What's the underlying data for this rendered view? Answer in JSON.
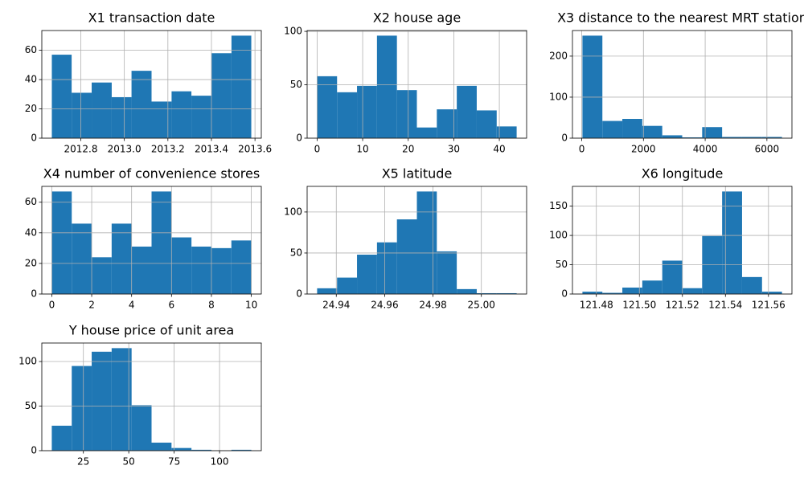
{
  "chart_data": [
    {
      "type": "histogram",
      "title": "X1 transaction date",
      "color": "#1f77b4",
      "grid": true,
      "bins": [
        2012.667,
        2012.758,
        2012.85,
        2012.942,
        2013.033,
        2013.125,
        2013.217,
        2013.308,
        2013.4,
        2013.492,
        2013.583
      ],
      "values": [
        57,
        31,
        38,
        28,
        46,
        25,
        32,
        29,
        58,
        70
      ],
      "xlim": [
        2012.621,
        2013.629
      ],
      "xticks": [
        2012.8,
        {
          "value": 2013,
          "label": "2013.0"
        },
        2013.2,
        2013.4,
        2013.6
      ],
      "ylim": [
        0,
        73.5
      ],
      "yticks": [
        0,
        20,
        40,
        60
      ]
    },
    {
      "type": "histogram",
      "title": "X2 house age",
      "color": "#1f77b4",
      "grid": true,
      "bins": [
        0,
        4.38,
        8.76,
        13.14,
        17.52,
        21.9,
        26.28,
        30.66,
        35.04,
        39.42,
        43.8
      ],
      "values": [
        58,
        43,
        49,
        96,
        45,
        10,
        27,
        49,
        26,
        11
      ],
      "xlim": [
        -2.19,
        45.99
      ],
      "xticks": [
        0,
        10,
        20,
        30,
        40
      ],
      "ylim": [
        0,
        100.8
      ],
      "yticks": [
        0,
        50,
        100
      ]
    },
    {
      "type": "histogram",
      "title": "X3 distance to the nearest MRT station",
      "color": "#1f77b4",
      "grid": true,
      "bins": [
        23.38,
        669.84,
        1316.31,
        1962.77,
        2609.24,
        3255.7,
        3902.16,
        4548.63,
        5195.09,
        5841.56,
        6488.02
      ],
      "values": [
        250,
        42,
        47,
        30,
        7,
        2,
        27,
        3,
        3,
        3
      ],
      "xlim": [
        -299.85,
        6811.25
      ],
      "xticks": [
        0,
        2000,
        4000,
        6000
      ],
      "ylim": [
        0,
        262.5
      ],
      "yticks": [
        0,
        100,
        200
      ]
    },
    {
      "type": "histogram",
      "title": "X4 number of convenience stores",
      "color": "#1f77b4",
      "grid": true,
      "bins": [
        0,
        1,
        2,
        3,
        4,
        5,
        6,
        7,
        8,
        9,
        10
      ],
      "values": [
        67,
        46,
        24,
        46,
        31,
        67,
        37,
        31,
        30,
        35
      ],
      "xlim": [
        -0.5,
        10.5
      ],
      "xticks": [
        0,
        2,
        4,
        6,
        8,
        10
      ],
      "ylim": [
        0,
        70.35
      ],
      "yticks": [
        0,
        20,
        40,
        60
      ]
    },
    {
      "type": "histogram",
      "title": "X5 latitude",
      "color": "#1f77b4",
      "grid": true,
      "bins": [
        24.93207,
        24.94032,
        24.94857,
        24.95683,
        24.96508,
        24.97333,
        24.98158,
        24.98983,
        24.99809,
        25.00634,
        25.01459
      ],
      "values": [
        7,
        20,
        48,
        63,
        91,
        125,
        52,
        6,
        1,
        1
      ],
      "xlim": [
        24.92794,
        25.01872
      ],
      "xticks": [
        24.94,
        24.96,
        24.98,
        {
          "value": 25,
          "label": "25.00"
        }
      ],
      "ylim": [
        0,
        131.25
      ],
      "yticks": [
        0,
        50,
        100
      ]
    },
    {
      "type": "histogram",
      "title": "X6 longitude",
      "color": "#1f77b4",
      "grid": true,
      "bins": [
        121.47353,
        121.4828,
        121.49208,
        121.50135,
        121.51063,
        121.5199,
        121.52917,
        121.53845,
        121.54772,
        121.557,
        121.56627
      ],
      "values": [
        4,
        2,
        11,
        23,
        57,
        10,
        99,
        175,
        29,
        4
      ],
      "xlim": [
        121.46889,
        121.57091
      ],
      "xticks": [
        121.48,
        {
          "value": 121.5,
          "label": "121.50"
        },
        121.52,
        121.54,
        121.56
      ],
      "ylim": [
        0,
        183.75
      ],
      "yticks": [
        0,
        50,
        100,
        150
      ]
    },
    {
      "type": "histogram",
      "title": "Y house price of unit area",
      "color": "#1f77b4",
      "grid": true,
      "bins": [
        7.6,
        18.59,
        29.58,
        40.57,
        51.56,
        62.55,
        73.54,
        84.53,
        95.52,
        106.51,
        117.5
      ],
      "values": [
        28,
        95,
        111,
        115,
        51,
        9,
        3,
        1,
        0,
        1
      ],
      "xlim": [
        2.105,
        122.995
      ],
      "xticks": [
        25,
        50,
        75,
        100
      ],
      "ylim": [
        0,
        120.75
      ],
      "yticks": [
        0,
        50,
        100
      ]
    }
  ]
}
